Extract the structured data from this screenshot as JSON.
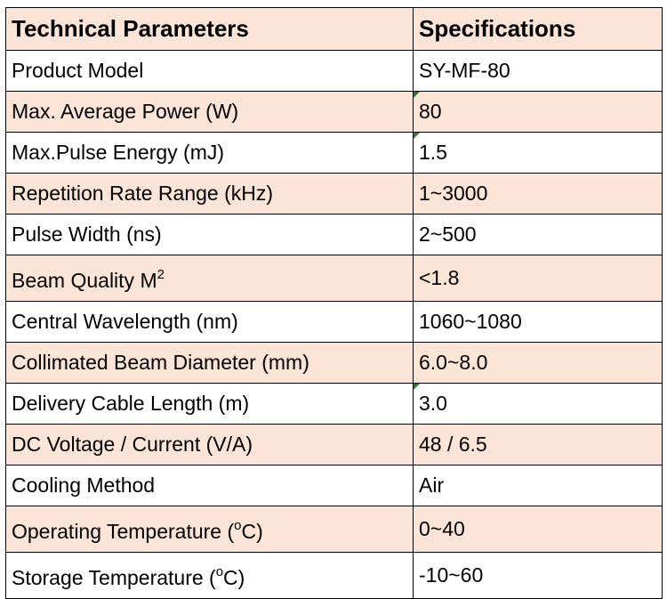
{
  "table": {
    "header": {
      "parameter": "Technical Parameters",
      "specification": "Specifications"
    },
    "rows": [
      {
        "parameter": "Product Model",
        "value": "SY-MF-80"
      },
      {
        "parameter": "Max. Average Power (W)",
        "value": "80"
      },
      {
        "parameter": "Max.Pulse Energy (mJ)",
        "value": "1.5"
      },
      {
        "parameter": "Repetition Rate Range (kHz)",
        "value": "1~3000"
      },
      {
        "parameter": "Pulse Width (ns)",
        "value": "2~500"
      },
      {
        "parameter": "Beam Quality M",
        "superscript": "2",
        "value": "<1.8"
      },
      {
        "parameter": "Central Wavelength (nm)",
        "value": "1060~1080"
      },
      {
        "parameter": "Collimated Beam Diameter (mm)",
        "value": "6.0~8.0"
      },
      {
        "parameter": "Delivery Cable Length (m)",
        "value": "3.0"
      },
      {
        "parameter": "DC Voltage / Current (V/A)",
        "value": "48 / 6.5"
      },
      {
        "parameter": "Cooling Method",
        "value": "Air"
      },
      {
        "parameter": "Operating Temperature (",
        "superscript": "o",
        "suffix": "C)",
        "value": "0~40"
      },
      {
        "parameter": "Storage Temperature (",
        "superscript": "o",
        "suffix": "C)",
        "value": "-10~60"
      }
    ]
  },
  "colors": {
    "header_fill": "#fce4d6",
    "alternate_row_fill": "#fce4d6",
    "border": "#000000",
    "comment_marker": "#2e7d32"
  }
}
